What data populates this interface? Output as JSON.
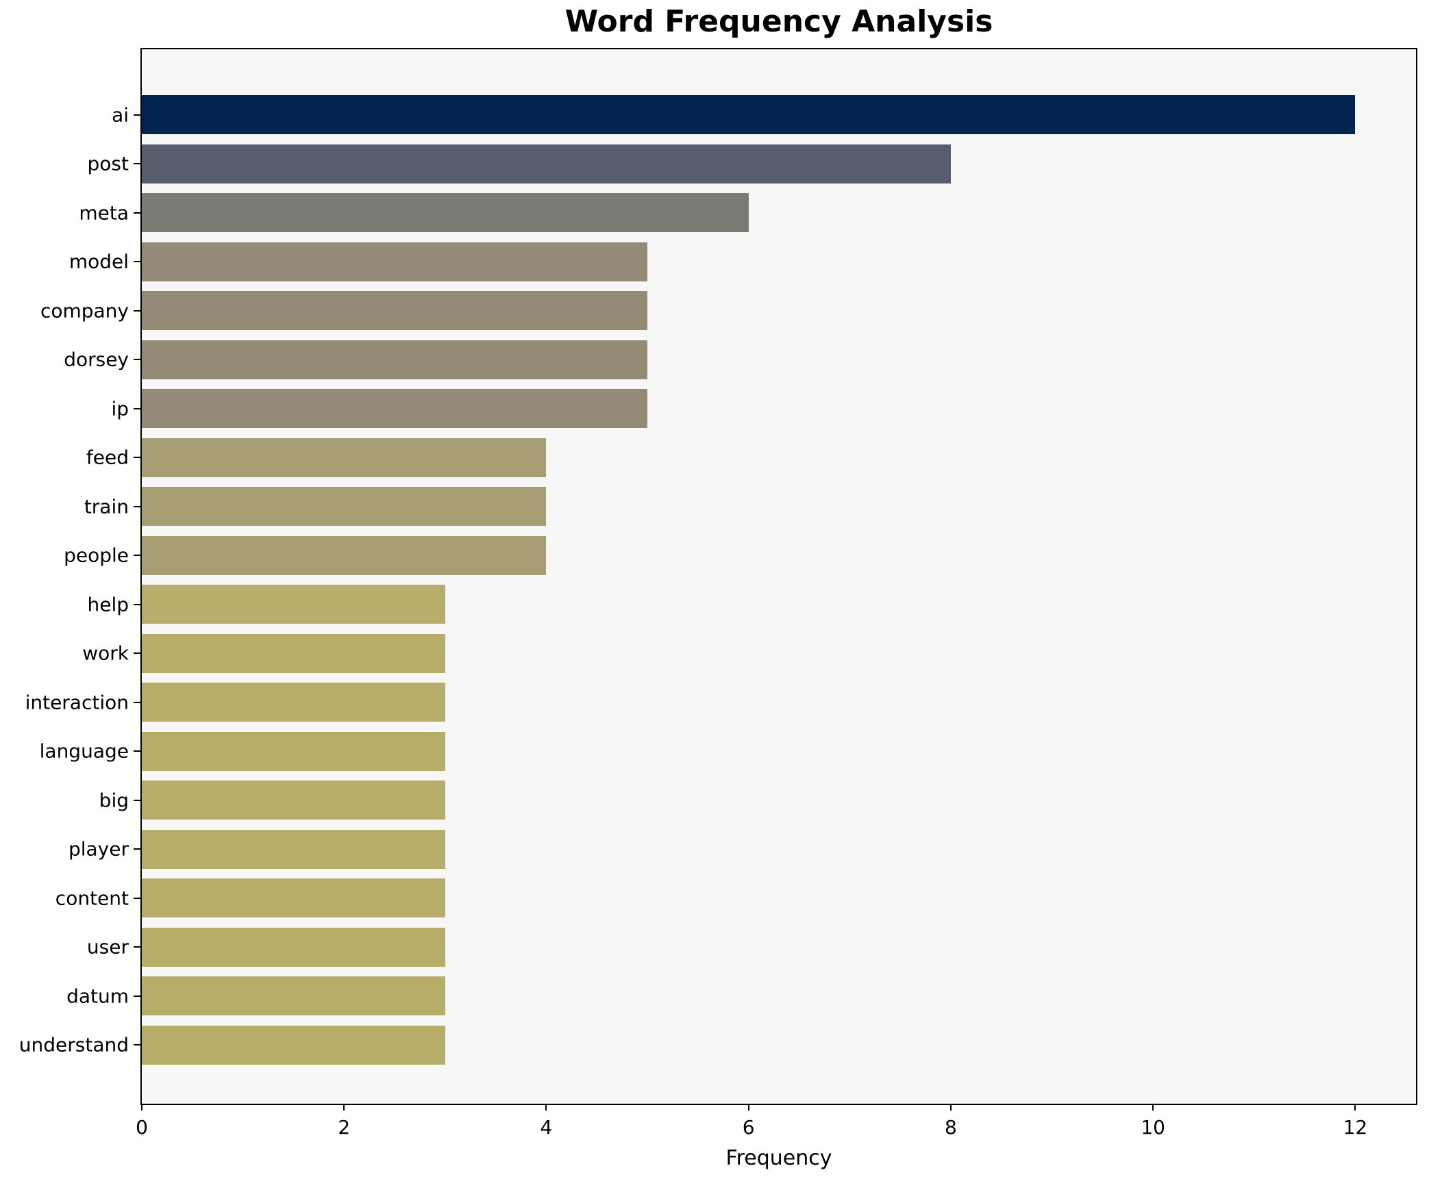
{
  "chart_data": {
    "type": "bar",
    "orientation": "horizontal",
    "title": "Word Frequency Analysis",
    "xlabel": "Frequency",
    "ylabel": "",
    "categories": [
      "ai",
      "post",
      "meta",
      "model",
      "company",
      "dorsey",
      "ip",
      "feed",
      "train",
      "people",
      "help",
      "work",
      "interaction",
      "language",
      "big",
      "player",
      "content",
      "user",
      "datum",
      "understand"
    ],
    "values": [
      12,
      8,
      6,
      5,
      5,
      5,
      5,
      4,
      4,
      4,
      3,
      3,
      3,
      3,
      3,
      3,
      3,
      3,
      3,
      3
    ],
    "bar_colors": [
      "#02234d",
      "#575d6d",
      "#7b7a75",
      "#928a74",
      "#928a74",
      "#928a74",
      "#928a74",
      "#a69d72",
      "#a69d72",
      "#a69d72",
      "#b8ac6a",
      "#b8ac6a",
      "#b8ac6a",
      "#b8ac6a",
      "#b8ac6a",
      "#b8ac6a",
      "#b8ac6a",
      "#b8ac6a",
      "#b8ac6a",
      "#b8ac6a"
    ],
    "x_ticks": [
      0,
      2,
      4,
      6,
      8,
      10,
      12
    ],
    "xlim": [
      0,
      12.6
    ],
    "grid": false,
    "legend": "none",
    "plot_background": "#f7f7f8",
    "figure_background": "#ffffff",
    "spine_color": "#000000"
  }
}
